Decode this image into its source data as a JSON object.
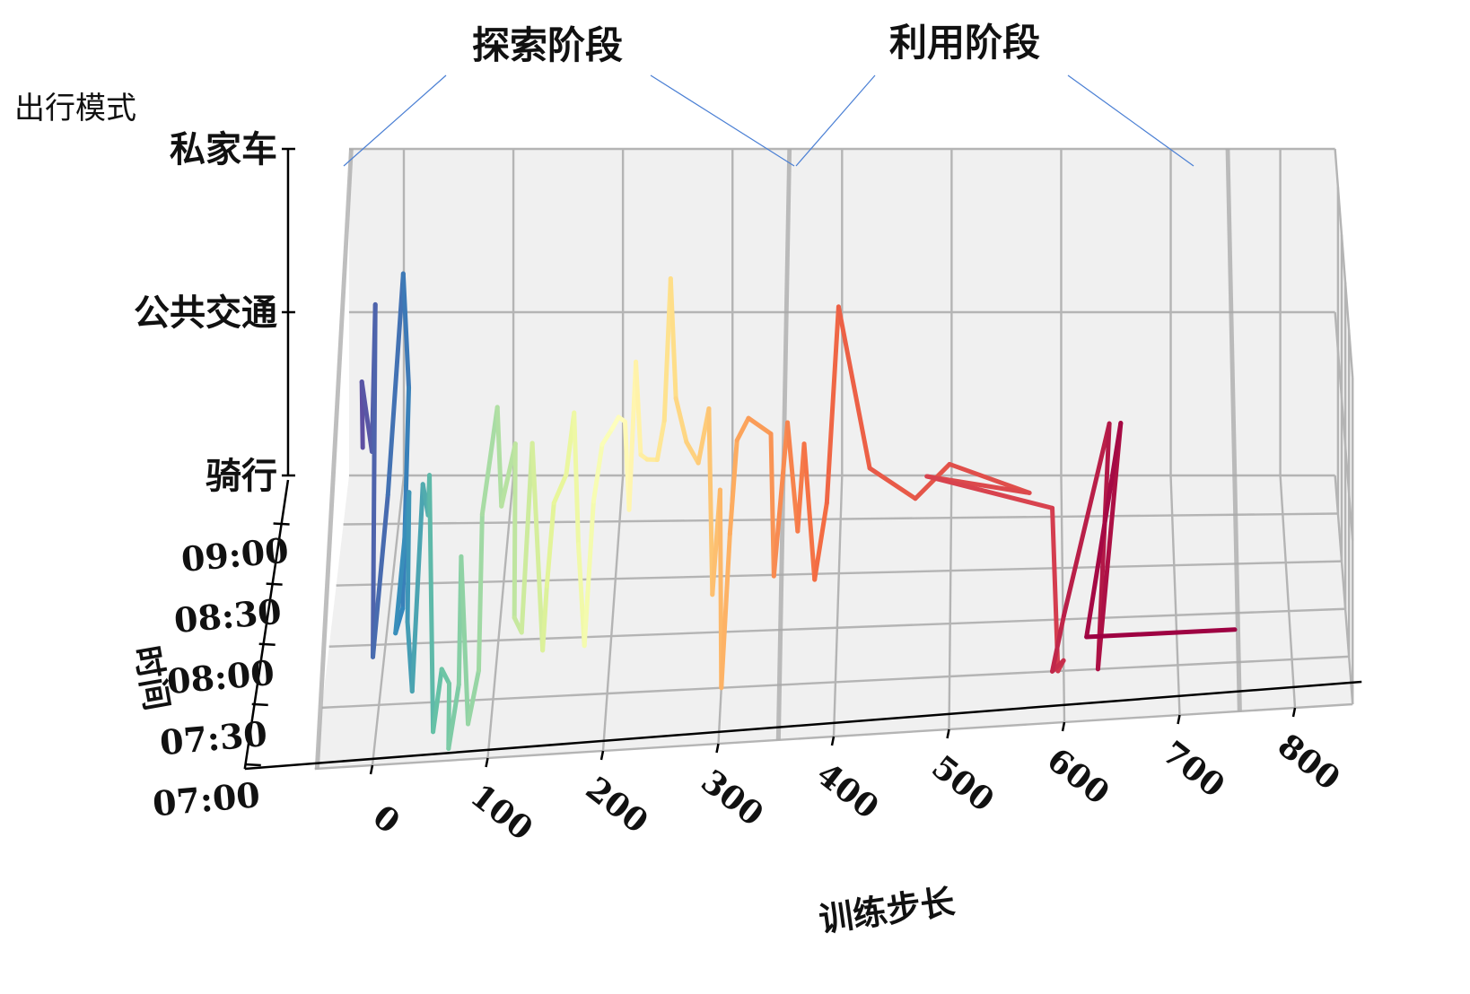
{
  "chart_data": {
    "type": "line",
    "projection": "3d",
    "axis_labels": {
      "x": "训练步长",
      "y": "时间",
      "z": "出行模式"
    },
    "x_ticks": [
      "0",
      "100",
      "200",
      "300",
      "400",
      "500",
      "600",
      "700",
      "800"
    ],
    "y_ticks": [
      "07:00",
      "07:30",
      "08:00",
      "08:30",
      "09:00"
    ],
    "z_ticks": [
      "骑行",
      "公共交通",
      "私家车"
    ],
    "x_range": [
      -50,
      850
    ],
    "phase_annotations": [
      "探索阶段",
      "利用阶段"
    ],
    "phase_boundaries_x": [
      -50,
      350,
      750
    ],
    "grid": true,
    "colormap": "Spectral (blue → red along training steps)",
    "colors": {
      "pane": "#f0f0f0",
      "grid": "#b4b4b4",
      "phase_plane": "#a8a8a8",
      "annotation_line": "#4a7fd4"
    },
    "series_points": [
      [
        -22,
        2.3,
        1.1
      ],
      [
        -18,
        1.5,
        1.8
      ],
      [
        -15,
        2.5,
        1.0
      ],
      [
        -12,
        2.5,
        1.9
      ],
      [
        -10,
        1.8,
        0.0
      ],
      [
        5,
        1.5,
        1.1
      ],
      [
        10,
        3.0,
        1.9
      ],
      [
        15,
        3.0,
        1.2
      ],
      [
        18,
        1.5,
        0.4
      ],
      [
        20,
        0.0,
        0.8
      ],
      [
        22,
        1.8,
        1.0
      ],
      [
        25,
        1.0,
        0.5
      ],
      [
        28,
        1.2,
        0.0
      ],
      [
        32,
        2.2,
        0.9
      ],
      [
        35,
        2.5,
        0.6
      ],
      [
        40,
        1.8,
        1.1
      ],
      [
        50,
        0.5,
        0.0
      ],
      [
        55,
        1.0,
        0.2
      ],
      [
        60,
        1.3,
        0.0
      ],
      [
        65,
        0.2,
        0.0
      ],
      [
        70,
        1.0,
        0.1
      ],
      [
        75,
        0.4,
        1.1
      ],
      [
        80,
        0.6,
        0.0
      ],
      [
        85,
        1.5,
        0.0
      ],
      [
        90,
        1.1,
        1.1
      ],
      [
        100,
        1.8,
        1.5
      ],
      [
        105,
        1.5,
        1.0
      ],
      [
        115,
        2.0,
        1.2
      ],
      [
        120,
        0.7,
        0.6
      ],
      [
        125,
        1.0,
        0.4
      ],
      [
        130,
        2.0,
        1.2
      ],
      [
        140,
        1.8,
        0.0
      ],
      [
        145,
        1.5,
        0.5
      ],
      [
        150,
        1.8,
        0.9
      ],
      [
        160,
        2.0,
        1.0
      ],
      [
        165,
        2.5,
        1.2
      ],
      [
        170,
        2.2,
        0.5
      ],
      [
        180,
        1.0,
        0.3
      ],
      [
        185,
        1.8,
        0.9
      ],
      [
        190,
        2.5,
        1.0
      ],
      [
        200,
        2.2,
        1.2
      ],
      [
        205,
        2.4,
        1.2
      ],
      [
        210,
        2.6,
        1.1
      ],
      [
        215,
        2.2,
        0.7
      ],
      [
        220,
        2.5,
        1.5
      ],
      [
        225,
        2.3,
        1.0
      ],
      [
        230,
        2.5,
        0.9
      ],
      [
        240,
        2.2,
        1.0
      ],
      [
        245,
        2.6,
        1.1
      ],
      [
        250,
        2.8,
        1.9
      ],
      [
        255,
        2.7,
        1.2
      ],
      [
        265,
        2.5,
        1.0
      ],
      [
        275,
        2.7,
        0.8
      ],
      [
        285,
        2.5,
        1.2
      ],
      [
        290,
        1.8,
        0.3
      ],
      [
        295,
        2.5,
        0.7
      ],
      [
        300,
        1.0,
        0.0
      ],
      [
        305,
        2.0,
        0.6
      ],
      [
        310,
        2.5,
        1.0
      ],
      [
        320,
        2.6,
        1.1
      ],
      [
        340,
        2.6,
        1.0
      ],
      [
        345,
        1.5,
        0.5
      ],
      [
        355,
        2.5,
        1.1
      ],
      [
        365,
        2.0,
        0.6
      ],
      [
        370,
        2.4,
        1.0
      ],
      [
        380,
        2.0,
        0.3
      ],
      [
        390,
        2.5,
        0.6
      ],
      [
        400,
        2.8,
        1.7
      ],
      [
        430,
        1.0,
        1.3
      ],
      [
        470,
        1.0,
        1.1
      ],
      [
        500,
        1.0,
        1.3
      ],
      [
        570,
        1.0,
        1.1
      ],
      [
        480,
        1.1,
        1.2
      ],
      [
        590,
        1.0,
        1.0
      ],
      [
        595,
        1.0,
        0.0
      ],
      [
        600,
        1.2,
        0.0
      ],
      [
        590,
        1.0,
        0.0
      ],
      [
        600,
        0.8,
        0.4
      ],
      [
        640,
        1.0,
        1.5
      ],
      [
        630,
        1.0,
        0.0
      ],
      [
        650,
        1.0,
        1.5
      ],
      [
        620,
        1.0,
        0.2
      ],
      [
        750,
        1.0,
        0.2
      ]
    ]
  }
}
